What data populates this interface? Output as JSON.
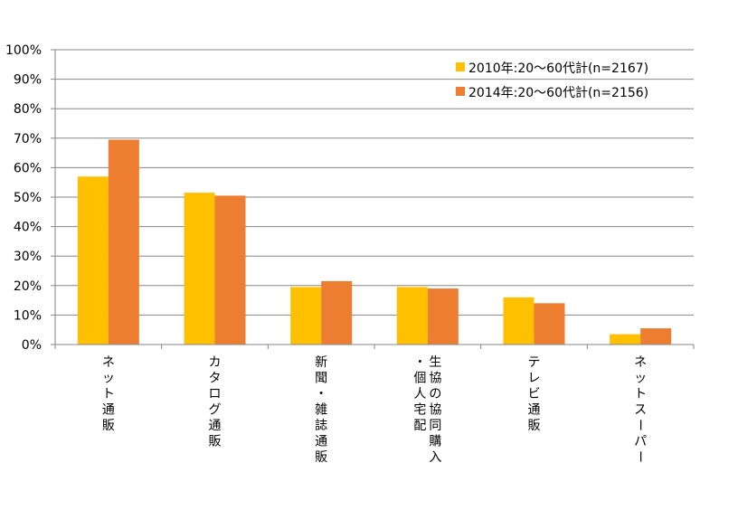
{
  "chart_data": {
    "type": "bar",
    "categories": [
      [
        "ネ",
        "ッ",
        "ト",
        "通",
        "販"
      ],
      [
        "カ",
        "タ",
        "ロ",
        "グ",
        "通",
        "販"
      ],
      [
        "新",
        "聞",
        "・",
        "雑",
        "誌",
        "通",
        "販"
      ],
      [
        [
          "生",
          "協",
          "の",
          "協",
          "同",
          "購",
          "入"
        ],
        [
          "・",
          "個",
          "人",
          "宅",
          "配"
        ]
      ],
      [
        "テ",
        "レ",
        "ビ",
        "通",
        "販"
      ],
      [
        "ネ",
        "ッ",
        "ト",
        "ス",
        "ー",
        "パ",
        "ー"
      ]
    ],
    "category_names": [
      "ネット通販",
      "カタログ通販",
      "新聞・雑誌通販",
      "生協の協同購入・個人宅配",
      "テレビ通販",
      "ネットスーパー"
    ],
    "series": [
      {
        "name": "2010年:20〜60代計(n=2167)",
        "color": "#FFC000",
        "values": [
          57,
          51.5,
          19.5,
          19.5,
          16,
          3.5
        ]
      },
      {
        "name": "2014年:20〜60代計(n=2156)",
        "color": "#ED7D31",
        "values": [
          69.5,
          50.5,
          21.5,
          19,
          14,
          5.5
        ]
      }
    ],
    "y_ticks": [
      "0%",
      "10%",
      "20%",
      "30%",
      "40%",
      "50%",
      "60%",
      "70%",
      "80%",
      "90%",
      "100%"
    ],
    "ylim": [
      0,
      100
    ],
    "grid": true,
    "legend_position": "top-right",
    "title": "",
    "xlabel": "",
    "ylabel": ""
  }
}
